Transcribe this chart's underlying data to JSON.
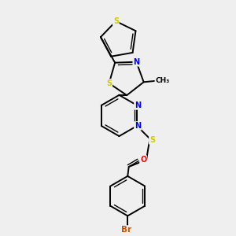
{
  "bg_color": "#efefef",
  "atom_colors": {
    "C": "#000000",
    "N": "#0000ee",
    "S": "#cccc00",
    "O": "#ff0000",
    "Br": "#cc5500"
  },
  "bond_color": "#000000"
}
